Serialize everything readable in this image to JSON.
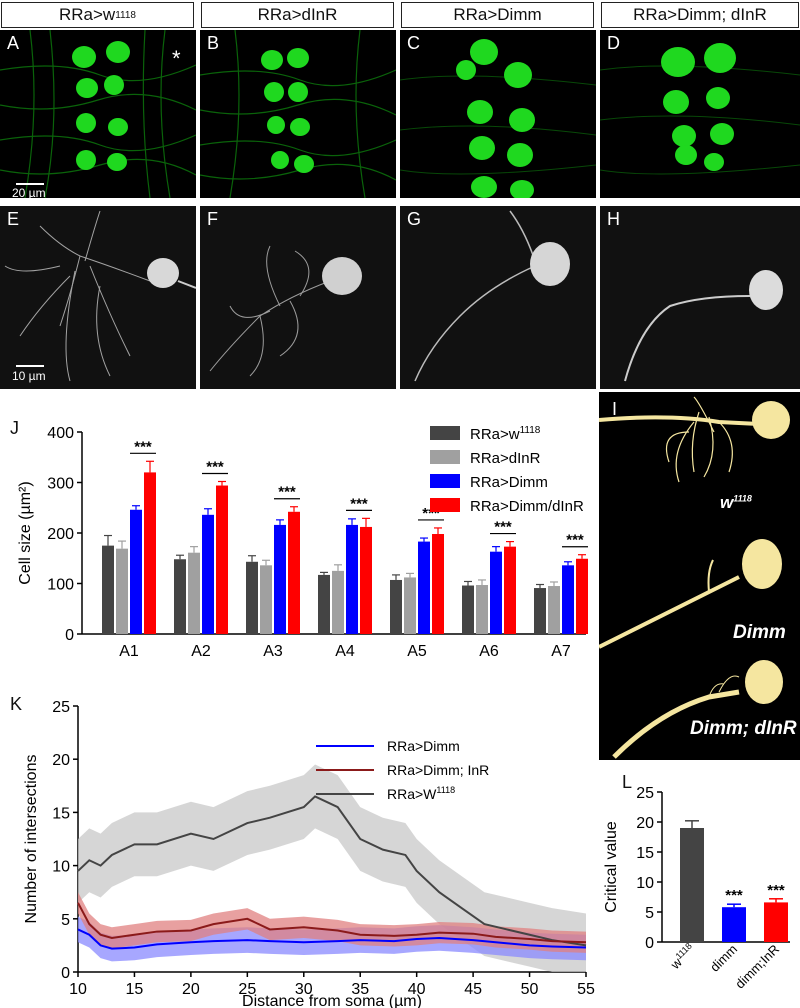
{
  "headers": [
    {
      "main": "RRa>w",
      "sup": "1118"
    },
    {
      "main": "RRa>dInR",
      "sup": ""
    },
    {
      "main": "RRa>Dimm",
      "sup": ""
    },
    {
      "main": "RRa>Dimm; dInR",
      "sup": ""
    }
  ],
  "panel_labels": {
    "A": "A",
    "B": "B",
    "C": "C",
    "D": "D",
    "E": "E",
    "F": "F",
    "G": "G",
    "H": "H",
    "I": "I",
    "J": "J",
    "K": "K",
    "L": "L"
  },
  "asterisk": "*",
  "scalebars": {
    "top": "20 µm",
    "bottom": "10 µm"
  },
  "panel_i_labels": [
    {
      "main": "w",
      "sup": "1118"
    },
    {
      "main": "Dimm",
      "sup": ""
    },
    {
      "main": "Dimm; dInR",
      "sup": ""
    }
  ],
  "colors": {
    "dark_gray": "#444444",
    "light_gray": "#a0a0a0",
    "blue": "#0000ff",
    "red": "#ff0000",
    "dark_red": "#8b1a1a",
    "gfp_green": "#1fd81f",
    "render_yellow": "#f5e6a0"
  },
  "chart_data": [
    {
      "type": "bar",
      "panel": "J",
      "categories": [
        "A1",
        "A2",
        "A3",
        "A4",
        "A5",
        "A6",
        "A7"
      ],
      "ylabel": "Cell size (µm²)",
      "ylim": [
        0,
        400
      ],
      "yticks": [
        "0",
        "100",
        "200",
        "300",
        "400"
      ],
      "significance": [
        "***",
        "***",
        "***",
        "***",
        "***",
        "***",
        "***"
      ],
      "legend_position": "top-right",
      "series": [
        {
          "name": "RRa>w1118",
          "color": "#444444",
          "values": [
            175,
            148,
            143,
            117,
            107,
            96,
            91
          ],
          "errors": [
            20,
            8,
            12,
            5,
            10,
            8,
            7
          ]
        },
        {
          "name": "RRa>dInR",
          "color": "#a0a0a0",
          "values": [
            169,
            161,
            136,
            125,
            112,
            97,
            95
          ],
          "errors": [
            15,
            12,
            10,
            12,
            8,
            10,
            8
          ]
        },
        {
          "name": "RRa>Dimm",
          "color": "#0000ff",
          "values": [
            246,
            236,
            216,
            216,
            183,
            163,
            136
          ],
          "errors": [
            8,
            12,
            10,
            12,
            7,
            10,
            7
          ]
        },
        {
          "name": "RRa>Dimm/dInR",
          "color": "#ff0000",
          "values": [
            320,
            294,
            242,
            212,
            198,
            173,
            149
          ],
          "errors": [
            22,
            8,
            10,
            17,
            12,
            10,
            8
          ]
        }
      ]
    },
    {
      "type": "line",
      "panel": "K",
      "xlabel": "Distance from soma (µm)",
      "ylabel": "Number of intersections",
      "xlim": [
        10,
        55
      ],
      "ylim": [
        0,
        25
      ],
      "xticks": [
        "10",
        "15",
        "20",
        "25",
        "30",
        "35",
        "40",
        "45",
        "50",
        "55"
      ],
      "yticks": [
        "0",
        "5",
        "10",
        "15",
        "20",
        "25"
      ],
      "legend_position": "top-right",
      "series": [
        {
          "name": "RRa>Dimm",
          "color": "#0000ff",
          "x": [
            10,
            11,
            12,
            13,
            15,
            17,
            20,
            22,
            25,
            27,
            30,
            33,
            35,
            38,
            40,
            42,
            45,
            47,
            50,
            52,
            55
          ],
          "y": [
            4.0,
            3.5,
            2.5,
            2.2,
            2.3,
            2.6,
            2.8,
            2.9,
            3.0,
            2.9,
            2.8,
            2.9,
            3.0,
            2.9,
            3.1,
            3.2,
            3.0,
            2.8,
            2.5,
            2.4,
            2.3
          ]
        },
        {
          "name": "RRa>Dimm; InR",
          "color": "#8b1a1a",
          "x": [
            10,
            11,
            12,
            13,
            15,
            17,
            20,
            22,
            25,
            27,
            30,
            33,
            35,
            38,
            40,
            42,
            45,
            47,
            50,
            52,
            55
          ],
          "y": [
            6.5,
            4.5,
            3.5,
            3.2,
            3.5,
            3.8,
            3.9,
            4.5,
            5.0,
            4.0,
            4.2,
            3.9,
            3.5,
            3.4,
            3.5,
            3.7,
            3.6,
            3.3,
            3.1,
            2.9,
            2.8
          ]
        },
        {
          "name": "RRa>W1118",
          "color": "#444444",
          "x": [
            10,
            11,
            12,
            13,
            15,
            17,
            20,
            22,
            25,
            27,
            30,
            31,
            33,
            35,
            37,
            39,
            40,
            42,
            44,
            46,
            48,
            50,
            52,
            55
          ],
          "y": [
            9.5,
            10.5,
            10.0,
            11.0,
            12.0,
            12.0,
            13.0,
            12.5,
            14.0,
            14.5,
            15.5,
            16.5,
            15.5,
            12.5,
            11.5,
            11.0,
            9.5,
            7.5,
            6.0,
            4.5,
            4.0,
            3.5,
            3.0,
            2.5
          ]
        }
      ]
    },
    {
      "type": "bar",
      "panel": "L",
      "categories": [
        "w1118",
        "dimm",
        "dimm;InR"
      ],
      "ylabel": "Critical value",
      "ylim": [
        0,
        25
      ],
      "yticks": [
        "0",
        "5",
        "10",
        "15",
        "20",
        "25"
      ],
      "values": [
        19.0,
        5.8,
        6.6
      ],
      "errors": [
        1.2,
        0.5,
        0.6
      ],
      "colors": [
        "#444444",
        "#0000ff",
        "#ff0000"
      ],
      "significance": [
        "",
        "***",
        "***"
      ]
    }
  ]
}
